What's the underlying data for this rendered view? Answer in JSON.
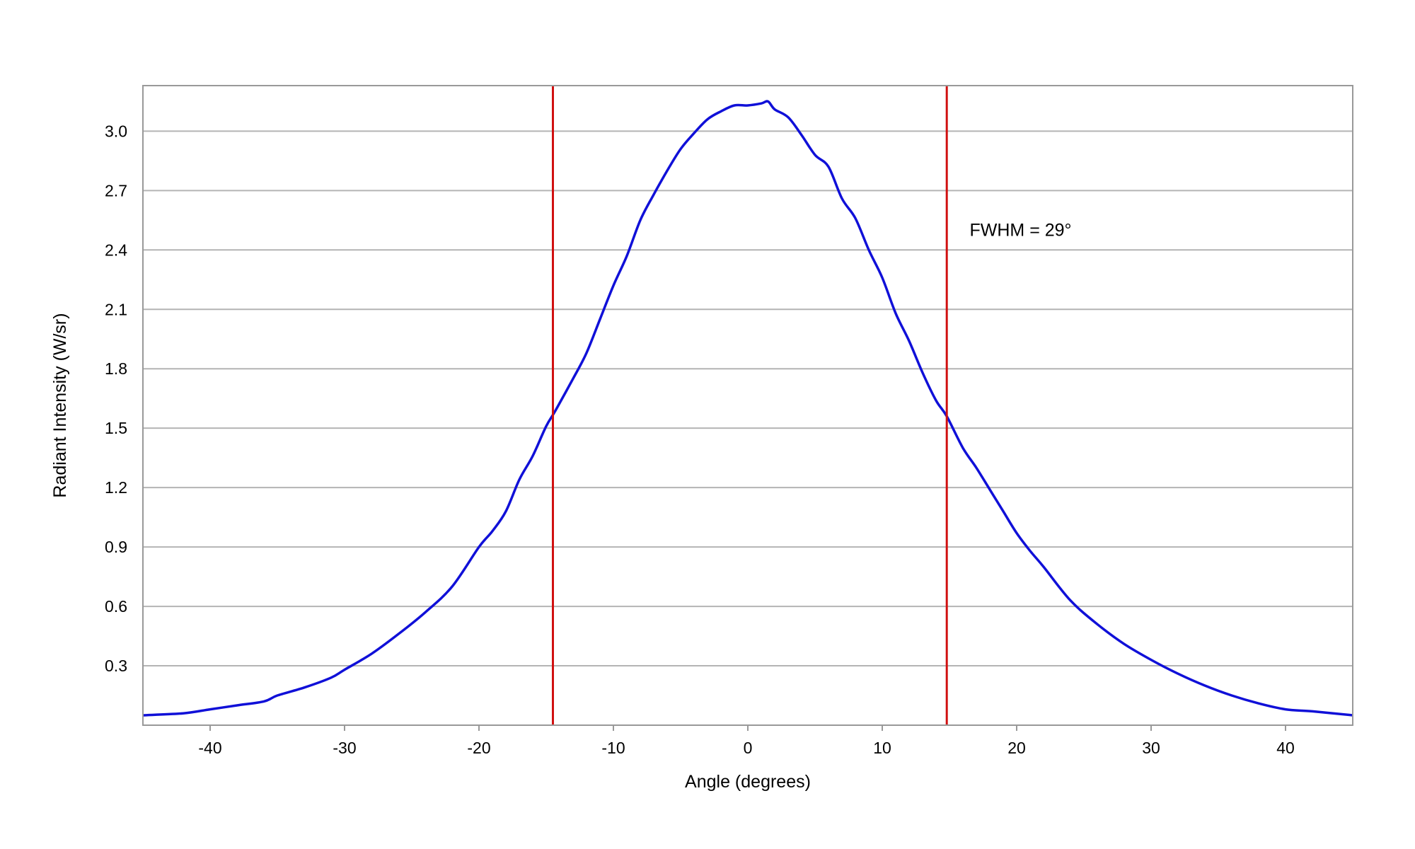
{
  "chart_data": {
    "type": "line",
    "title": "",
    "xlabel": "Angle (degrees)",
    "ylabel": "Radiant Intensity (W/sr)",
    "xlim": [
      -45,
      45
    ],
    "ylim": [
      0,
      3.23
    ],
    "x_ticks": [
      -40,
      -30,
      -20,
      -10,
      0,
      10,
      20,
      30,
      40
    ],
    "x_tick_labels": [
      "-40",
      "-30",
      "-20",
      "-10",
      "0",
      "10",
      "20",
      "30",
      "40"
    ],
    "y_ticks": [
      0.3,
      0.6,
      0.9,
      1.2,
      1.5,
      1.8,
      2.1,
      2.4,
      2.7,
      3.0
    ],
    "y_tick_labels": [
      "0.3",
      "0.6",
      "0.9",
      "1.2",
      "1.5",
      "1.8",
      "2.1",
      "2.4",
      "2.7",
      "3.0"
    ],
    "grid": true,
    "series": [
      {
        "color": "#1010d8",
        "x": [
          -45,
          -42,
          -40,
          -38,
          -36,
          -35,
          -33,
          -31,
          -30,
          -28,
          -26,
          -24,
          -22,
          -20,
          -19,
          -18,
          -17,
          -16,
          -15,
          -14.3,
          -13,
          -12,
          -11,
          -10,
          -9,
          -8,
          -7,
          -6,
          -5,
          -4,
          -3,
          -2,
          -1,
          0,
          1,
          1.5,
          2,
          3,
          4,
          5,
          6,
          7,
          8,
          9,
          10,
          11,
          12,
          13,
          14,
          14.8,
          16,
          17,
          18,
          19,
          20,
          21,
          22,
          24,
          26,
          28,
          30,
          32,
          34,
          36,
          38,
          40,
          42,
          45
        ],
        "y": [
          0.05,
          0.06,
          0.08,
          0.1,
          0.12,
          0.15,
          0.19,
          0.24,
          0.28,
          0.36,
          0.46,
          0.57,
          0.7,
          0.9,
          0.98,
          1.08,
          1.24,
          1.36,
          1.51,
          1.59,
          1.75,
          1.88,
          2.05,
          2.22,
          2.37,
          2.55,
          2.68,
          2.8,
          2.91,
          2.99,
          3.06,
          3.1,
          3.13,
          3.13,
          3.14,
          3.15,
          3.11,
          3.07,
          2.98,
          2.88,
          2.82,
          2.66,
          2.56,
          2.4,
          2.26,
          2.08,
          1.94,
          1.78,
          1.64,
          1.56,
          1.4,
          1.3,
          1.19,
          1.08,
          0.97,
          0.88,
          0.8,
          0.63,
          0.51,
          0.41,
          0.33,
          0.26,
          0.2,
          0.15,
          0.11,
          0.08,
          0.07,
          0.05
        ]
      }
    ],
    "reference_lines": [
      {
        "x": -14.5,
        "color": "#d01010"
      },
      {
        "x": 14.8,
        "color": "#d01010"
      }
    ],
    "annotations": [
      {
        "text": "FWHM = 29°",
        "x": 16.5,
        "y": 2.5
      }
    ]
  }
}
